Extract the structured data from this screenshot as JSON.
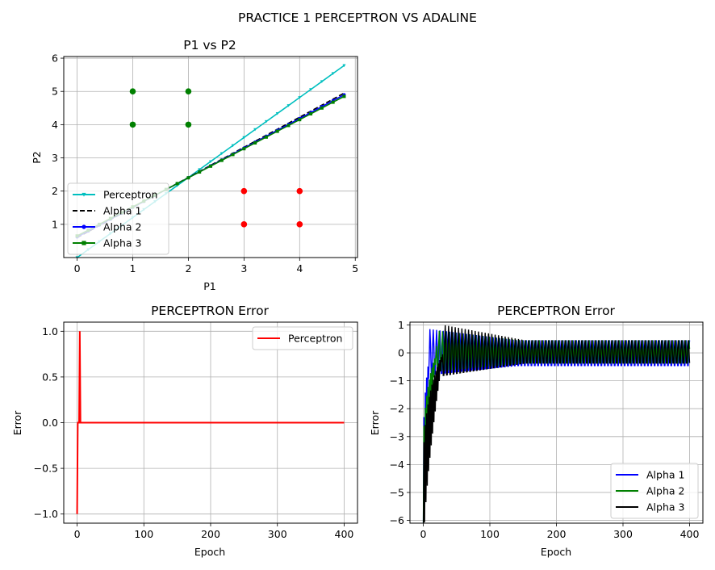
{
  "figure": {
    "title": "PRACTICE 1 PERCEPTRON VS ADALINE"
  },
  "chart_data": [
    {
      "type": "scatter",
      "title": "P1 vs P2",
      "xlabel": "P1",
      "ylabel": "P2",
      "xlim": [
        -0.24,
        5.04
      ],
      "ylim": [
        0.0,
        6.05
      ],
      "xticks": [
        0,
        1,
        2,
        3,
        4,
        5
      ],
      "yticks": [
        1,
        2,
        3,
        4,
        5,
        6
      ],
      "grid": true,
      "legend_position": "lower-left",
      "points": [
        {
          "name": "class-green",
          "color": "#008000",
          "x": [
            1,
            1,
            2,
            2
          ],
          "y": [
            4,
            5,
            4,
            5
          ]
        },
        {
          "name": "class-red",
          "color": "#ff0000",
          "x": [
            3,
            3,
            4,
            4
          ],
          "y": [
            1,
            2,
            1,
            2
          ]
        }
      ],
      "lines": [
        {
          "name": "Perceptron",
          "color": "#00bfbf",
          "dash": false,
          "marker": "triangle",
          "x0": 0,
          "x1": 4.8,
          "y0": 0.0,
          "y1": 5.78,
          "n": 25
        },
        {
          "name": "Alpha 1",
          "color": "#000000",
          "dash": true,
          "marker": "none",
          "x0": 0,
          "x1": 4.8,
          "y0": 0.6,
          "y1": 4.95,
          "n": 25
        },
        {
          "name": "Alpha 2",
          "color": "#0000ff",
          "dash": false,
          "marker": "circle",
          "x0": 0,
          "x1": 4.8,
          "y0": 0.62,
          "y1": 4.9,
          "n": 25
        },
        {
          "name": "Alpha 3",
          "color": "#008000",
          "dash": false,
          "marker": "square",
          "x0": 0,
          "x1": 4.8,
          "y0": 0.65,
          "y1": 4.85,
          "n": 25
        }
      ]
    },
    {
      "type": "line",
      "title": "PERCEPTRON Error",
      "xlabel": "Epoch",
      "ylabel": "Error",
      "xlim": [
        -20,
        420
      ],
      "ylim": [
        -1.1,
        1.1
      ],
      "xticks": [
        0,
        100,
        200,
        300,
        400
      ],
      "yticks": [
        -1.0,
        -0.5,
        0.0,
        0.5,
        1.0
      ],
      "ytick_labels": [
        "−1.0",
        "−0.5",
        "0.0",
        "0.5",
        "1.0"
      ],
      "grid": true,
      "legend_position": "top-right",
      "series": [
        {
          "name": "Perceptron",
          "color": "#ff0000",
          "x": [
            0,
            1,
            2,
            3,
            4,
            5,
            6,
            400
          ],
          "y": [
            -1,
            0,
            0,
            0,
            1,
            0,
            0,
            0
          ]
        }
      ]
    },
    {
      "type": "line",
      "title": "PERCEPTRON Error",
      "xlabel": "Epoch",
      "ylabel": "Error",
      "xlim": [
        -20,
        420
      ],
      "ylim": [
        -6.1,
        1.1
      ],
      "xticks": [
        0,
        100,
        200,
        300,
        400
      ],
      "yticks": [
        -6,
        -5,
        -4,
        -3,
        -2,
        -1,
        0,
        1
      ],
      "ytick_labels": [
        "−6",
        "−5",
        "−4",
        "−3",
        "−2",
        "−1",
        "0",
        "1"
      ],
      "grid": true,
      "legend_position": "lower-right",
      "series": [
        {
          "name": "Alpha 1",
          "color": "#0000ff",
          "y0": -5.1,
          "center": -0.05,
          "amp_start": 0.9,
          "amp_end": 0.5,
          "rise": 10,
          "period": 5
        },
        {
          "name": "Alpha 2",
          "color": "#008000",
          "y0": -5.0,
          "center": 0.0,
          "amp_start": 0.8,
          "amp_end": 0.45,
          "rise": 20,
          "period": 5
        },
        {
          "name": "Alpha 3",
          "color": "#000000",
          "y0": -5.75,
          "center": 0.0,
          "amp_start": 1.0,
          "amp_end": 0.45,
          "rise": 30,
          "period": 5
        }
      ]
    }
  ]
}
